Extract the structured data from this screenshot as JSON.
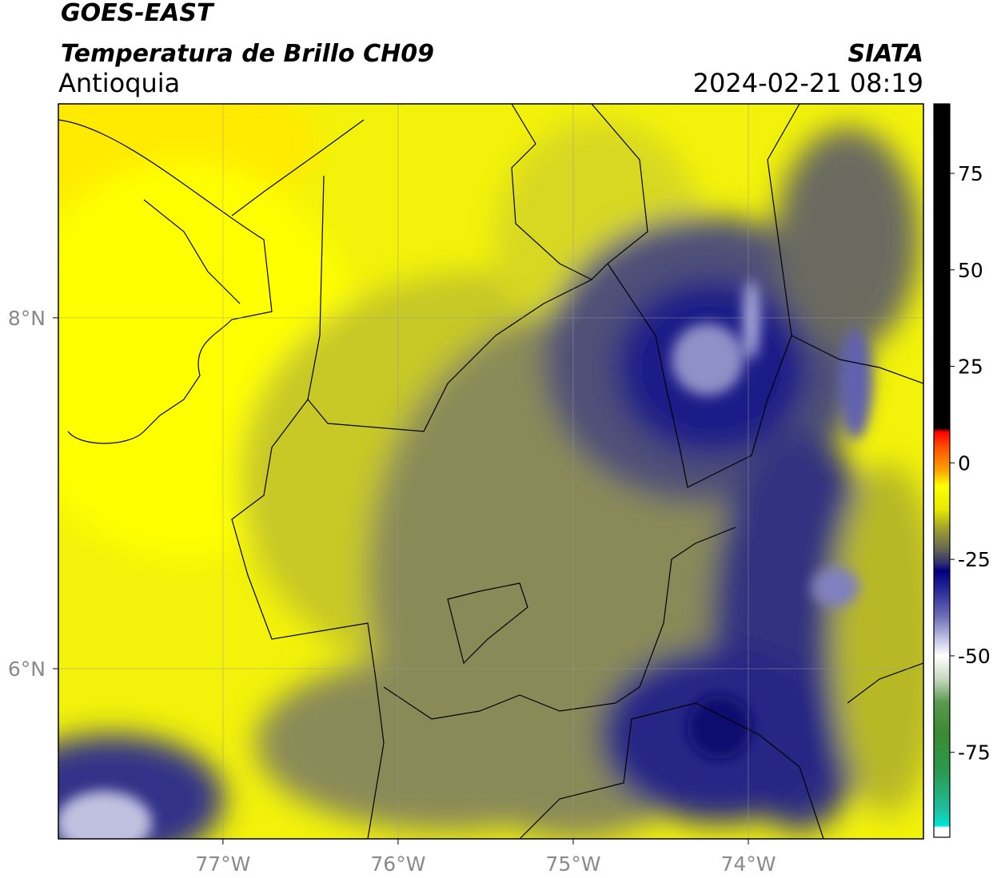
{
  "map": {
    "satellite": "GOES-EAST",
    "title": "Temperatura de Brillo CH09",
    "region": "Antioquia",
    "source": "SIATA",
    "datetime": "2024-02-21 08:19",
    "xlim": [
      -77.94,
      -73.0
    ],
    "ylim": [
      5.03,
      9.22
    ],
    "xticks": [
      {
        "value": -77,
        "label": "77°W"
      },
      {
        "value": -76,
        "label": "76°W"
      },
      {
        "value": -75,
        "label": "75°W"
      },
      {
        "value": -74,
        "label": "74°W"
      }
    ],
    "yticks": [
      {
        "value": 8,
        "label": "8°N"
      },
      {
        "value": 6,
        "label": "6°N"
      }
    ],
    "grid": true,
    "colorbar": {
      "clim": [
        -97,
        93
      ],
      "ticks": [
        75,
        50,
        25,
        0,
        -25,
        -50,
        -75
      ],
      "colormap": [
        {
          "value": -97,
          "color": "#ffffff"
        },
        {
          "value": -94.5,
          "color": "#ffffff"
        },
        {
          "value": -94,
          "color": "#00e5d8"
        },
        {
          "value": -90,
          "color": "#20c0a0"
        },
        {
          "value": -80,
          "color": "#2a9a50"
        },
        {
          "value": -70,
          "color": "#3a8a30"
        },
        {
          "value": -62,
          "color": "#5a9a50"
        },
        {
          "value": -56,
          "color": "#c8d8c0"
        },
        {
          "value": -50,
          "color": "#ffffff"
        },
        {
          "value": -46,
          "color": "#c8c8e8"
        },
        {
          "value": -40,
          "color": "#7070b8"
        },
        {
          "value": -33,
          "color": "#2a2a98"
        },
        {
          "value": -28,
          "color": "#000080"
        },
        {
          "value": -26,
          "color": "#303070"
        },
        {
          "value": -22,
          "color": "#6a6a50"
        },
        {
          "value": -17,
          "color": "#a0a030"
        },
        {
          "value": -12,
          "color": "#e8e800"
        },
        {
          "value": -6,
          "color": "#ffff00"
        },
        {
          "value": -2,
          "color": "#ffa500"
        },
        {
          "value": 4,
          "color": "#ff5000"
        },
        {
          "value": 8,
          "color": "#ff0000"
        },
        {
          "value": 9,
          "color": "#000000"
        },
        {
          "value": 93,
          "color": "#000000"
        }
      ]
    }
  }
}
